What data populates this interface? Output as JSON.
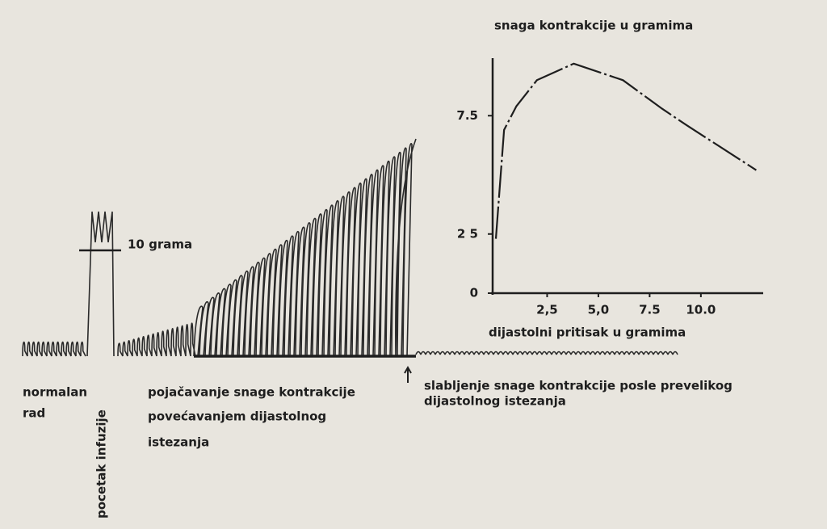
{
  "labels": {
    "normalan": "normalan",
    "rad": "rad",
    "infuzija": "pocetak infuzije",
    "skala": "10 grama",
    "pojacavanje": [
      "pojačavanje snage kontrakcije",
      "povećavanjem dijastolnog",
      "istezanja"
    ],
    "slabljenje": [
      "slabljenje snage kontrakcije posle  prevelikog",
      "dijastolnog istezanja"
    ]
  },
  "chart_data": {
    "type": "line",
    "title": "snaga kontrakcije u gramima",
    "x_label": "dijastolni pritisak u gramima",
    "x": [
      0,
      0.4,
      1.0,
      2.0,
      3.8,
      6.2,
      8.1,
      9.3,
      12.7
    ],
    "series": [
      {
        "name": "snaga kontrakcije",
        "color": "#1e1e1e",
        "values": [
          2.3,
          6.9,
          7.9,
          9.0,
          9.7,
          9.0,
          7.8,
          7.1,
          5.2
        ]
      }
    ],
    "xlim": [
      0,
      13
    ],
    "ylim": [
      0,
      10
    ],
    "xticks": [
      {
        "value": 2.5,
        "label": "2,5"
      },
      {
        "value": 5,
        "label": "5,0"
      },
      7.5,
      {
        "value": 10,
        "label": "10.0"
      }
    ],
    "yticks": [
      0,
      {
        "value": 2.5,
        "label": "2 5"
      },
      7.5
    ]
  }
}
